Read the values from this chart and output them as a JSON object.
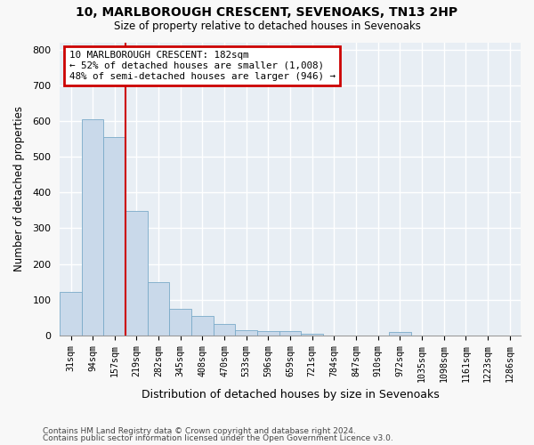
{
  "title1": "10, MARLBOROUGH CRESCENT, SEVENOAKS, TN13 2HP",
  "title2": "Size of property relative to detached houses in Sevenoaks",
  "xlabel": "Distribution of detached houses by size in Sevenoaks",
  "ylabel": "Number of detached properties",
  "bar_labels": [
    "31sqm",
    "94sqm",
    "157sqm",
    "219sqm",
    "282sqm",
    "345sqm",
    "408sqm",
    "470sqm",
    "533sqm",
    "596sqm",
    "659sqm",
    "721sqm",
    "784sqm",
    "847sqm",
    "910sqm",
    "972sqm",
    "1035sqm",
    "1098sqm",
    "1161sqm",
    "1223sqm",
    "1286sqm"
  ],
  "bar_values": [
    122,
    605,
    555,
    348,
    148,
    75,
    55,
    32,
    14,
    12,
    12,
    5,
    0,
    0,
    0,
    9,
    0,
    0,
    0,
    0,
    0
  ],
  "bar_color": "#c9d9ea",
  "bar_edge_color": "#7aaac8",
  "vline_color": "#cc0000",
  "annotation_title": "10 MARLBOROUGH CRESCENT: 182sqm",
  "annotation_line1": "← 52% of detached houses are smaller (1,008)",
  "annotation_line2": "48% of semi-detached houses are larger (946) →",
  "annotation_box_edgecolor": "#cc0000",
  "ylim": [
    0,
    820
  ],
  "yticks": [
    0,
    100,
    200,
    300,
    400,
    500,
    600,
    700,
    800
  ],
  "footnote1": "Contains HM Land Registry data © Crown copyright and database right 2024.",
  "footnote2": "Contains public sector information licensed under the Open Government Licence v3.0.",
  "fig_bg_color": "#f8f8f8",
  "ax_bg_color": "#e8eef4",
  "grid_color": "#ffffff"
}
